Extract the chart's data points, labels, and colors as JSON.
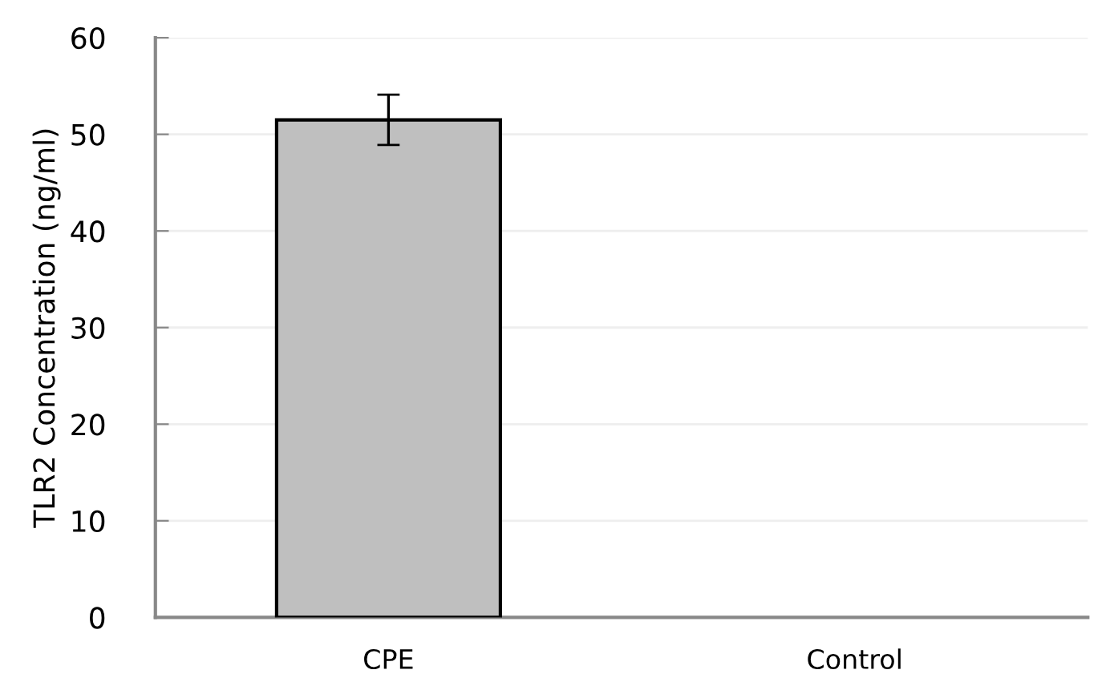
{
  "chart_data": {
    "type": "bar",
    "ylabel": "TLR2 Concentration (ng/ml)",
    "categories": [
      "CPE",
      "Control"
    ],
    "values": [
      51.5,
      null
    ],
    "errors": [
      2.6,
      null
    ],
    "color": "#bfbfbf",
    "ylim": [
      0,
      60
    ],
    "yticks": [
      0,
      10,
      20,
      30,
      40,
      50,
      60
    ],
    "grid": "y",
    "legend": false
  }
}
